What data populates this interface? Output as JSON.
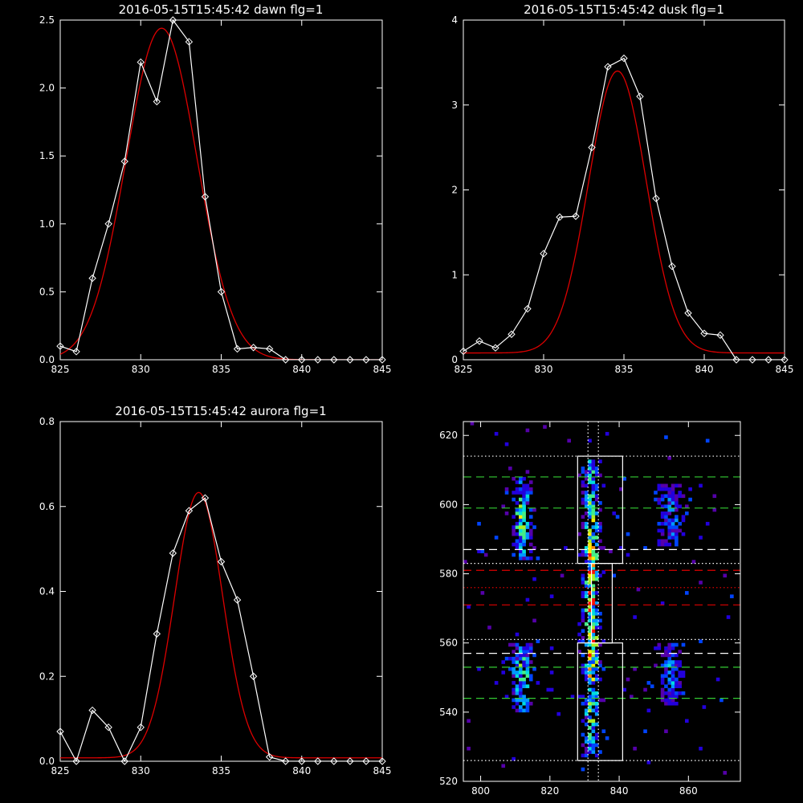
{
  "colors": {
    "background": "#000000",
    "axes": "#ffffff",
    "data_line": "#ffffff",
    "fit_line": "#dd0000",
    "window_line": "#ffffff",
    "green_dash": "#33cc33",
    "red_dash": "#dd0000",
    "white_dash": "#ffffff"
  },
  "chart_data": [
    {
      "type": "line",
      "title": "2016-05-15T15:45:42 dawn flg=1",
      "xlim": [
        825,
        845
      ],
      "ylim": [
        0,
        2.5
      ],
      "xticks": [
        825,
        830,
        835,
        840,
        845
      ],
      "yticks": [
        0,
        0.5,
        1,
        1.5,
        2,
        2.5
      ],
      "ytick_labels": [
        "0.0",
        "0.5",
        "1.0",
        "1.5",
        "2.0",
        "2.5"
      ],
      "markers": "diamond",
      "series": [
        {
          "role": "data",
          "x": [
            825,
            826,
            827,
            828,
            829,
            830,
            831,
            832,
            833,
            834,
            835,
            836,
            837,
            838,
            839,
            840,
            841,
            842,
            843,
            844,
            845
          ],
          "y": [
            0.1,
            0.06,
            0.6,
            1.0,
            1.46,
            2.19,
            1.9,
            2.5,
            2.34,
            1.2,
            0.5,
            0.08,
            0.09,
            0.08,
            0,
            0,
            0,
            0,
            0,
            0,
            0
          ]
        },
        {
          "role": "fit",
          "model": "gaussian",
          "amplitude": 2.44,
          "center": 831.3,
          "sigma": 2.2,
          "offset": 0
        }
      ]
    },
    {
      "type": "line",
      "title": "2016-05-15T15:45:42 dusk flg=1",
      "xlim": [
        825,
        845
      ],
      "ylim": [
        0,
        4
      ],
      "xticks": [
        825,
        830,
        835,
        840,
        845
      ],
      "yticks": [
        0,
        1,
        2,
        3,
        4
      ],
      "ytick_labels": [
        "0",
        "1",
        "2",
        "3",
        "4"
      ],
      "markers": "diamond",
      "series": [
        {
          "role": "data",
          "x": [
            825,
            826,
            827,
            828,
            829,
            830,
            831,
            832,
            833,
            834,
            835,
            836,
            837,
            838,
            839,
            840,
            841,
            842,
            843,
            844,
            845
          ],
          "y": [
            0.1,
            0.22,
            0.14,
            0.3,
            0.6,
            1.25,
            1.68,
            1.69,
            2.5,
            3.45,
            3.55,
            3.1,
            1.9,
            1.1,
            0.55,
            0.31,
            0.29,
            0,
            0,
            0,
            0
          ]
        },
        {
          "role": "fit",
          "model": "gaussian",
          "amplitude": 3.32,
          "center": 834.6,
          "sigma": 1.8,
          "offset": 0.08
        }
      ]
    },
    {
      "type": "line",
      "title": "2016-05-15T15:45:42 aurora flg=1",
      "xlim": [
        825,
        845
      ],
      "ylim": [
        0,
        0.8
      ],
      "xticks": [
        825,
        830,
        835,
        840,
        845
      ],
      "yticks": [
        0,
        0.2,
        0.4,
        0.6,
        0.8
      ],
      "ytick_labels": [
        "0.0",
        "0.2",
        "0.4",
        "0.6",
        "0.8"
      ],
      "markers": "diamond",
      "series": [
        {
          "role": "data",
          "x": [
            825,
            826,
            827,
            828,
            829,
            830,
            831,
            832,
            833,
            834,
            835,
            836,
            837,
            838,
            839,
            840,
            841,
            842,
            843,
            844,
            845
          ],
          "y": [
            0.07,
            0,
            0.12,
            0.08,
            0,
            0.08,
            0.3,
            0.49,
            0.59,
            0.62,
            0.47,
            0.38,
            0.2,
            0.01,
            0,
            0,
            0,
            0,
            0,
            0,
            0
          ]
        },
        {
          "role": "fit",
          "model": "gaussian",
          "amplitude": 0.625,
          "center": 833.6,
          "sigma": 1.5,
          "offset": 0.008
        }
      ]
    },
    {
      "type": "heatmap",
      "title": "",
      "xlim": [
        795,
        875
      ],
      "ylim": [
        520,
        624
      ],
      "xticks": [
        800,
        820,
        840,
        860
      ],
      "yticks": [
        520,
        540,
        560,
        580,
        600,
        620
      ],
      "colormap": [
        "#330066",
        "#5500aa",
        "#2200dd",
        "#0044ff",
        "#0099ff",
        "#00dddd",
        "#44ee88",
        "#aaee22",
        "#ffee00",
        "#ff8800",
        "#ff1100"
      ],
      "emission_columns": [
        {
          "center_x": 812,
          "width": 3,
          "y_ranges": [
            [
              540,
              560
            ],
            [
              584,
              608
            ]
          ],
          "peak": 0.7
        },
        {
          "center_x": 832,
          "width": 2.2,
          "y_ranges": [
            [
              527,
              613
            ]
          ],
          "peak": 1.0
        },
        {
          "center_x": 855,
          "width": 3,
          "y_ranges": [
            [
              542,
              560
            ],
            [
              588,
              606
            ]
          ],
          "peak": 0.45
        }
      ],
      "box_windows": [
        {
          "x": [
            828,
            841
          ],
          "y": [
            583,
            614
          ]
        },
        {
          "x": [
            832,
            838
          ],
          "y": [
            560,
            583
          ]
        },
        {
          "x": [
            828,
            841
          ],
          "y": [
            526,
            560
          ]
        }
      ],
      "vertical_dotted_lines_x": [
        831,
        834
      ],
      "horizontal_lines": [
        {
          "y": 614,
          "style": "dotted",
          "color": "white"
        },
        {
          "y": 608,
          "style": "dashed",
          "color": "green"
        },
        {
          "y": 599,
          "style": "dashed",
          "color": "green"
        },
        {
          "y": 587,
          "style": "dashed",
          "color": "white"
        },
        {
          "y": 583,
          "style": "dotted",
          "color": "white"
        },
        {
          "y": 581,
          "style": "dashed",
          "color": "red"
        },
        {
          "y": 576,
          "style": "dotted",
          "color": "red"
        },
        {
          "y": 571,
          "style": "dashed",
          "color": "red"
        },
        {
          "y": 561,
          "style": "dotted",
          "color": "white"
        },
        {
          "y": 557,
          "style": "dashed",
          "color": "white"
        },
        {
          "y": 553,
          "style": "dashed",
          "color": "green"
        },
        {
          "y": 544,
          "style": "dashed",
          "color": "green"
        },
        {
          "y": 526,
          "style": "dotted",
          "color": "white"
        }
      ]
    }
  ]
}
